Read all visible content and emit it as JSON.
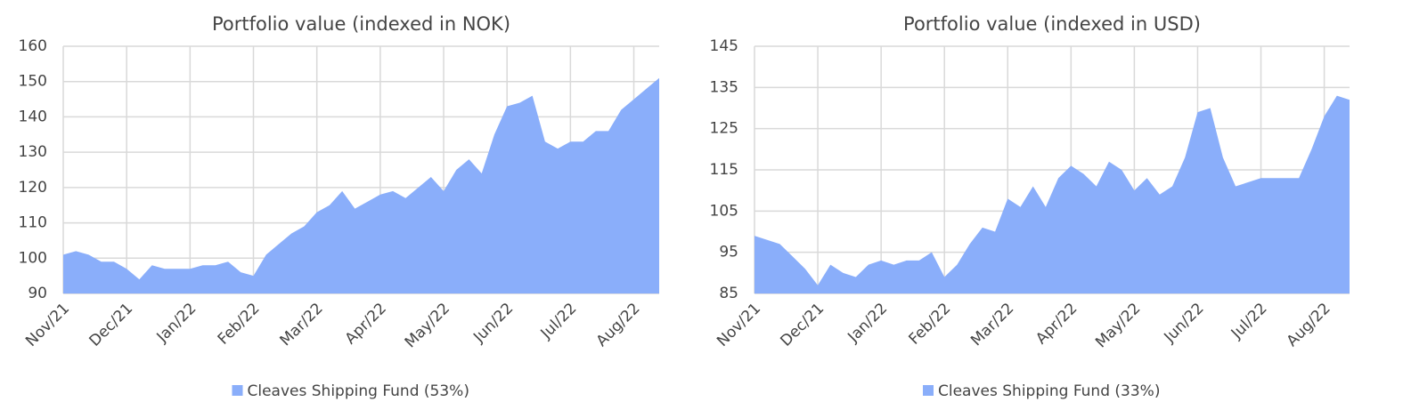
{
  "chart_data": [
    {
      "type": "area",
      "title": "Portfolio value (indexed in NOK)",
      "categories": [
        "Nov/21",
        null,
        null,
        null,
        null,
        "Dec/21",
        null,
        null,
        null,
        null,
        "Jan/22",
        null,
        null,
        null,
        null,
        "Feb/22",
        null,
        null,
        null,
        null,
        "Mar/22",
        null,
        null,
        null,
        null,
        "Apr/22",
        null,
        null,
        null,
        null,
        "May/22",
        null,
        null,
        null,
        null,
        "Jun/22",
        null,
        null,
        null,
        null,
        "Jul/22",
        null,
        null,
        null,
        null,
        "Aug/22",
        null,
        null
      ],
      "series": [
        {
          "name": "Cleaves Shipping Fund (53%)",
          "color": "#8aaefa",
          "values": [
            101,
            102,
            101,
            99,
            99,
            97,
            94,
            98,
            97,
            97,
            97,
            98,
            98,
            99,
            96,
            95,
            101,
            104,
            107,
            109,
            113,
            115,
            119,
            114,
            116,
            118,
            119,
            117,
            120,
            123,
            119,
            125,
            128,
            124,
            135,
            143,
            144,
            146,
            133,
            131,
            133,
            133,
            136,
            136,
            142,
            145,
            148,
            151
          ]
        }
      ],
      "ylim": [
        90,
        160
      ],
      "yticks": [
        90,
        100,
        110,
        120,
        130,
        140,
        150,
        160
      ],
      "grid": true
    },
    {
      "type": "area",
      "title": "Portfolio value (indexed in USD)",
      "categories": [
        "Nov/21",
        null,
        null,
        null,
        null,
        "Dec/21",
        null,
        null,
        null,
        null,
        "Jan/22",
        null,
        null,
        null,
        null,
        "Feb/22",
        null,
        null,
        null,
        null,
        "Mar/22",
        null,
        null,
        null,
        null,
        "Apr/22",
        null,
        null,
        null,
        null,
        "May/22",
        null,
        null,
        null,
        null,
        "Jun/22",
        null,
        null,
        null,
        null,
        "Jul/22",
        null,
        null,
        null,
        null,
        "Aug/22",
        null,
        null
      ],
      "series": [
        {
          "name": "Cleaves Shipping Fund (33%)",
          "color": "#8aaefa",
          "values": [
            99,
            98,
            97,
            94,
            91,
            87,
            92,
            90,
            89,
            92,
            93,
            92,
            93,
            93,
            95,
            89,
            92,
            97,
            101,
            100,
            108,
            106,
            111,
            106,
            113,
            116,
            114,
            111,
            117,
            115,
            110,
            113,
            109,
            111,
            118,
            129,
            130,
            118,
            111,
            112,
            113,
            113,
            113,
            113,
            120,
            128,
            133,
            132
          ]
        }
      ],
      "ylim": [
        85,
        145
      ],
      "yticks": [
        85,
        95,
        105,
        115,
        125,
        135,
        145
      ],
      "grid": true
    }
  ]
}
